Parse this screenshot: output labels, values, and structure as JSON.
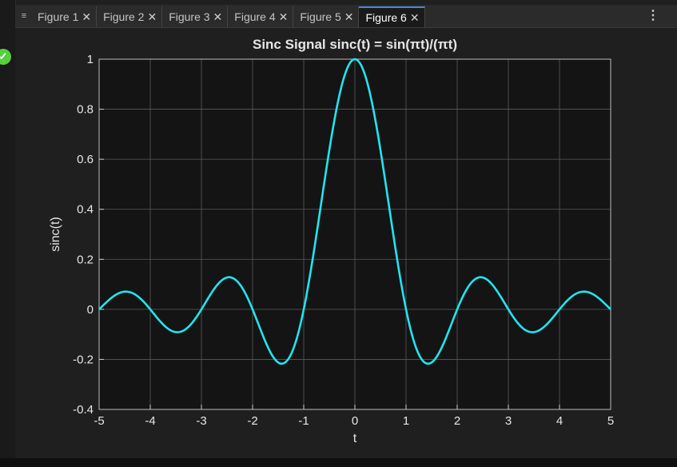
{
  "tabs": [
    {
      "label": "Figure 1",
      "active": false
    },
    {
      "label": "Figure 2",
      "active": false
    },
    {
      "label": "Figure 3",
      "active": false
    },
    {
      "label": "Figure 4",
      "active": false
    },
    {
      "label": "Figure 5",
      "active": false
    },
    {
      "label": "Figure 6",
      "active": true
    }
  ],
  "icons": {
    "tab_menu": "hamburger-icon",
    "tab_close": "close-icon",
    "overflow": "vertical-ellipsis-icon",
    "status": "check-circle-icon"
  },
  "colors": {
    "line": "#1fe5f0",
    "axes_bg": "#141414",
    "grid": "#5a5a5a",
    "text": "#e6e6e6",
    "active_tab_accent": "#3d8ee0",
    "status_green": "#55d13b"
  },
  "chart_data": {
    "type": "line",
    "title": "Sinc  Signal  sinc(t)  =  sin(πt)/(πt)",
    "xlabel": "t",
    "ylabel": "sinc(t)",
    "xlim": [
      -5,
      5
    ],
    "ylim": [
      -0.4,
      1
    ],
    "xticks": [
      -5,
      -4,
      -3,
      -2,
      -1,
      0,
      1,
      2,
      3,
      4,
      5
    ],
    "yticks": [
      -0.4,
      -0.2,
      0,
      0.2,
      0.4,
      0.6,
      0.8,
      1
    ],
    "grid": true,
    "series": [
      {
        "function": "sin(pi*t)/(pi*t)",
        "x": [
          -5,
          -4.75,
          -4.5,
          -4.25,
          -4,
          -3.75,
          -3.5,
          -3.25,
          -3,
          -2.75,
          -2.5,
          -2.25,
          -2,
          -1.75,
          -1.5,
          -1.25,
          -1,
          -0.75,
          -0.5,
          -0.25,
          0,
          0.25,
          0.5,
          0.75,
          1,
          1.25,
          1.5,
          1.75,
          2,
          2.25,
          2.5,
          2.75,
          3,
          3.25,
          3.5,
          3.75,
          4,
          4.25,
          4.5,
          4.75,
          5
        ],
        "y": [
          0,
          0.047,
          0.071,
          0.053,
          0,
          -0.06,
          -0.091,
          -0.069,
          0,
          0.082,
          0.127,
          0.1,
          0,
          -0.129,
          -0.212,
          -0.18,
          0,
          0.3,
          0.637,
          0.9,
          1,
          0.9,
          0.637,
          0.3,
          0,
          -0.18,
          -0.212,
          -0.129,
          0,
          0.1,
          0.127,
          0.082,
          0,
          -0.069,
          -0.091,
          -0.06,
          0,
          0.053,
          0.071,
          0.047,
          0
        ]
      }
    ]
  }
}
